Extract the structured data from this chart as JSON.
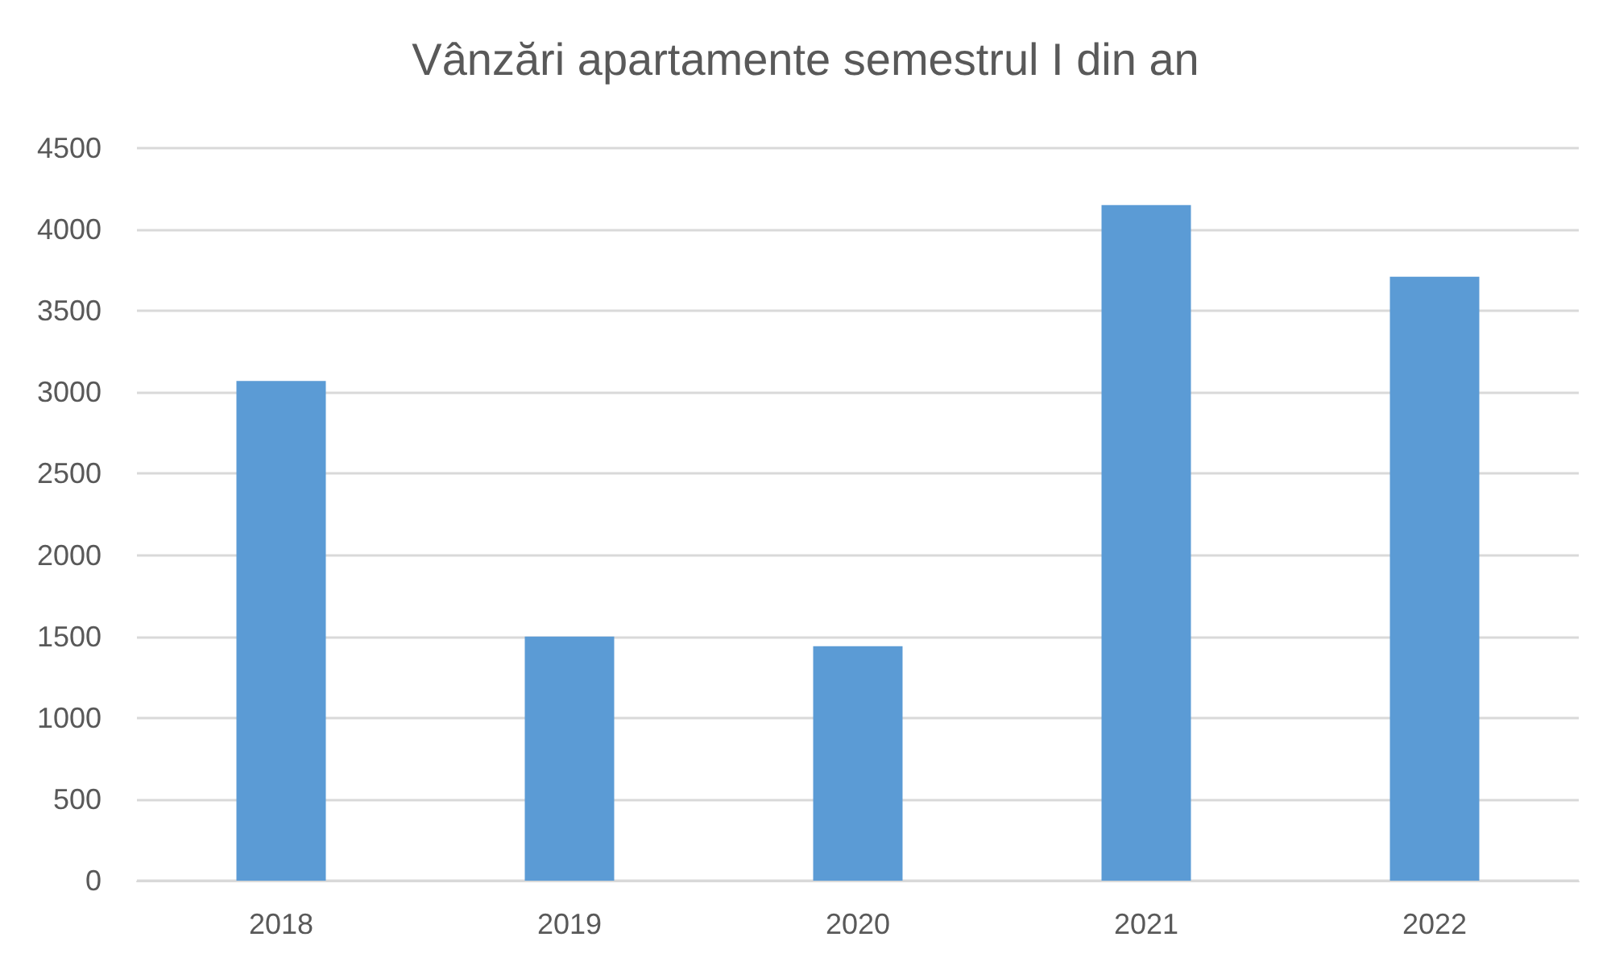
{
  "chart_data": {
    "type": "bar",
    "title": "Vânzări apartamente semestrul I din an",
    "categories": [
      "2018",
      "2019",
      "2020",
      "2021",
      "2022"
    ],
    "values": [
      3070,
      1500,
      1440,
      4150,
      3710
    ],
    "color": "#5b9bd5",
    "ylim": [
      0,
      4500
    ],
    "yticks": [
      0,
      500,
      1000,
      1500,
      2000,
      2500,
      3000,
      3500,
      4000,
      4500
    ],
    "grid": "y"
  }
}
